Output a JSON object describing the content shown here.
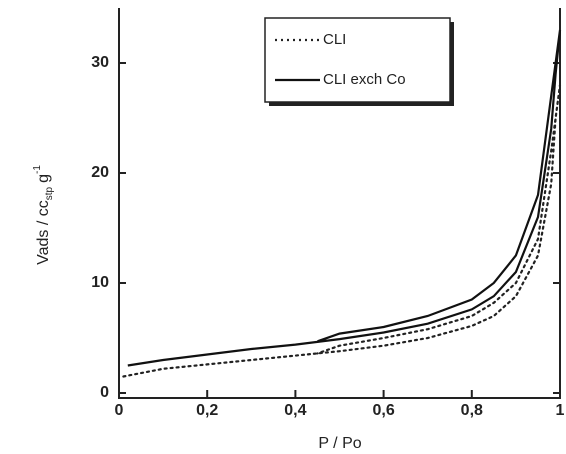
{
  "chart_data": {
    "type": "line",
    "x_label": "P / Po",
    "y_label": {
      "main": "Vads / cc",
      "sub": "stp",
      "unit": "g",
      "sup": "-1"
    },
    "xlim": [
      0,
      1
    ],
    "ylim": [
      0,
      35
    ],
    "xticks": [
      0,
      {
        "value": 0.2,
        "label": "0,2"
      },
      {
        "value": 0.4,
        "label": "0,4"
      },
      {
        "value": 0.6,
        "label": "0,6"
      },
      {
        "value": 0.8,
        "label": "0,8"
      },
      1
    ],
    "yticks": [
      0,
      10,
      20,
      30
    ],
    "grid": false,
    "legend": "upper center",
    "series": [
      {
        "name": "CLI",
        "color": "#222",
        "dash": "dotted",
        "x": [
          0.01,
          0.1,
          0.2,
          0.3,
          0.4,
          0.5,
          0.6,
          0.7,
          0.8,
          0.85,
          0.9,
          0.95,
          0.98,
          0.99,
          1.0,
          0.98,
          0.95,
          0.9,
          0.85,
          0.8,
          0.7,
          0.6,
          0.5,
          0.45
        ],
        "values": [
          1.5,
          2.2,
          2.6,
          3.0,
          3.4,
          3.8,
          4.3,
          5.0,
          6.1,
          7.0,
          8.8,
          12.5,
          19,
          25,
          28,
          22,
          14,
          10,
          8.2,
          7.0,
          5.8,
          5.0,
          4.3,
          3.6
        ]
      },
      {
        "name": "CLI exch Co",
        "color": "#111",
        "dash": "solid",
        "x": [
          0.02,
          0.1,
          0.2,
          0.3,
          0.4,
          0.5,
          0.6,
          0.7,
          0.8,
          0.85,
          0.9,
          0.95,
          0.98,
          0.99,
          1.0,
          0.98,
          0.95,
          0.9,
          0.85,
          0.8,
          0.7,
          0.6,
          0.5,
          0.45
        ],
        "values": [
          2.5,
          3.0,
          3.5,
          4.0,
          4.4,
          4.9,
          5.5,
          6.3,
          7.6,
          8.8,
          11,
          16,
          24,
          29,
          33,
          27,
          18,
          12.5,
          10,
          8.5,
          7.0,
          6.0,
          5.4,
          4.7
        ]
      }
    ]
  }
}
